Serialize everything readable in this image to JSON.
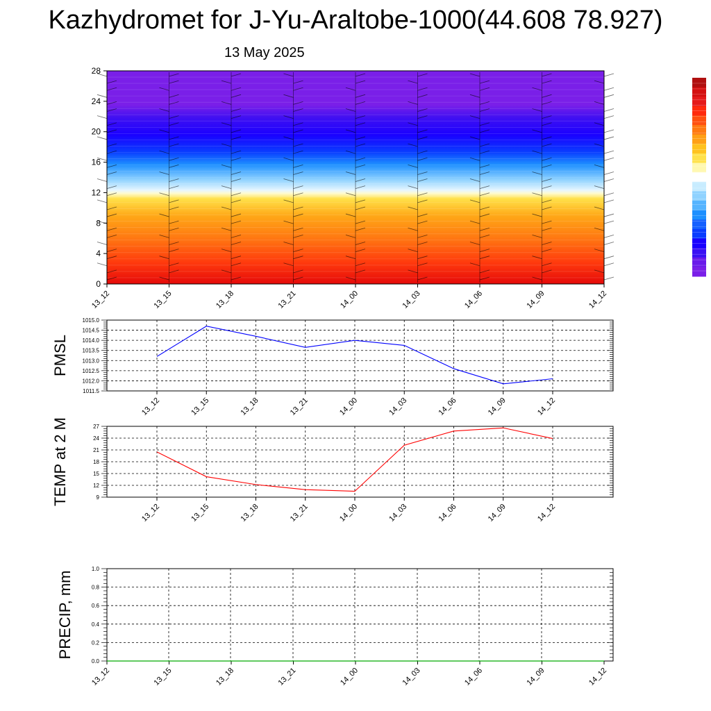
{
  "title": "Kazhydromet for J-Yu-Araltobe-1000(44.608 78.927)",
  "subtitle": "13 May 2025",
  "chart_data": [
    {
      "type": "heatmap",
      "x_ticks": [
        "13_12",
        "13_15",
        "13_18",
        "13_21",
        "14_00",
        "14_03",
        "14_06",
        "14_09",
        "14_12"
      ],
      "y_ticks": [
        0,
        4,
        8,
        12,
        16,
        20,
        24,
        28
      ],
      "ylim": [
        0,
        28
      ],
      "colorscale": [
        "#7a1fe8",
        "#1a00ff",
        "#0a3cff",
        "#1e90ff",
        "#9fd8ff",
        "#ffffff",
        "#ffef6a",
        "#ffb21a",
        "#ff7a12",
        "#ff3a0d",
        "#e80a0a"
      ],
      "wind_barbs": true
    },
    {
      "type": "line",
      "ylabel": "PMSL",
      "x": [
        "13_12",
        "13_15",
        "13_18",
        "13_21",
        "14_00",
        "14_03",
        "14_06",
        "14_09",
        "14_12"
      ],
      "values": [
        1013.2,
        1014.7,
        1014.2,
        1013.65,
        1014.0,
        1013.75,
        1012.6,
        1011.85,
        1012.1
      ],
      "ylim": [
        1011.5,
        1015.0
      ],
      "y_ticks": [
        "1011.5",
        "1012.0",
        "1012.5",
        "1013.0",
        "1013.5",
        "1014.0",
        "1014.5",
        "1015.0"
      ],
      "color": "#0000ff",
      "grid": true
    },
    {
      "type": "line",
      "ylabel": "TEMP at 2 M",
      "x": [
        "13_12",
        "13_15",
        "13_18",
        "13_21",
        "14_00",
        "14_03",
        "14_06",
        "14_09",
        "14_12"
      ],
      "values": [
        20.5,
        14.2,
        12.2,
        10.9,
        10.5,
        22.2,
        25.8,
        26.6,
        23.9
      ],
      "ylim": [
        9,
        27
      ],
      "y_ticks": [
        "9",
        "12",
        "15",
        "18",
        "21",
        "24",
        "27"
      ],
      "color": "#ff0000",
      "grid": true
    },
    {
      "type": "line",
      "ylabel": "PRECIP, mm",
      "x": [
        "13_12",
        "13_15",
        "13_18",
        "13_21",
        "14_00",
        "14_03",
        "14_06",
        "14_09",
        "14_12"
      ],
      "values": [
        0,
        0,
        0,
        0,
        0,
        0,
        0,
        0,
        0
      ],
      "ylim": [
        0,
        1
      ],
      "y_ticks": [
        "0.0",
        "0.2",
        "0.4",
        "0.6",
        "0.8",
        "1.0"
      ],
      "color": "#00aa00",
      "grid": true
    }
  ]
}
